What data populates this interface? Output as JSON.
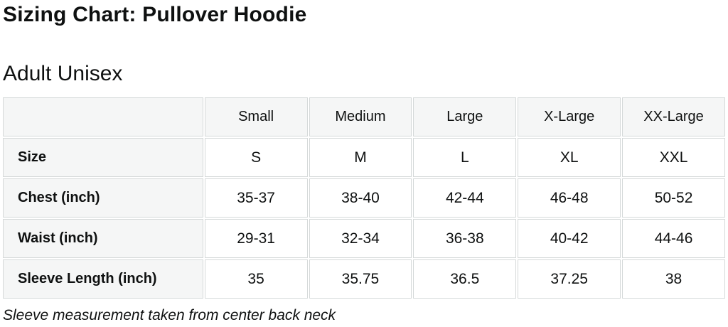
{
  "page": {
    "title": "Sizing Chart: Pullover Hoodie",
    "subtitle": "Adult Unisex",
    "footnote": "Sleeve measurement taken from center back neck"
  },
  "chart_data": {
    "type": "table",
    "title": "Sizing Chart: Pullover Hoodie",
    "corner_header": "",
    "column_headers": [
      "Small",
      "Medium",
      "Large",
      "X-Large",
      "XX-Large"
    ],
    "rows": [
      {
        "label": "Size",
        "values": [
          "S",
          "M",
          "L",
          "XL",
          "XXL"
        ]
      },
      {
        "label": "Chest (inch)",
        "values": [
          "35-37",
          "38-40",
          "42-44",
          "46-48",
          "50-52"
        ]
      },
      {
        "label": "Waist (inch)",
        "values": [
          "29-31",
          "32-34",
          "36-38",
          "40-42",
          "44-46"
        ]
      },
      {
        "label": "Sleeve Length (inch)",
        "values": [
          "35",
          "35.75",
          "36.5",
          "37.25",
          "38"
        ]
      }
    ]
  },
  "colors": {
    "text": "#0f1111",
    "header_bg": "#f5f6f6",
    "border": "#d5d9d9",
    "cell_bg": "#ffffff"
  }
}
